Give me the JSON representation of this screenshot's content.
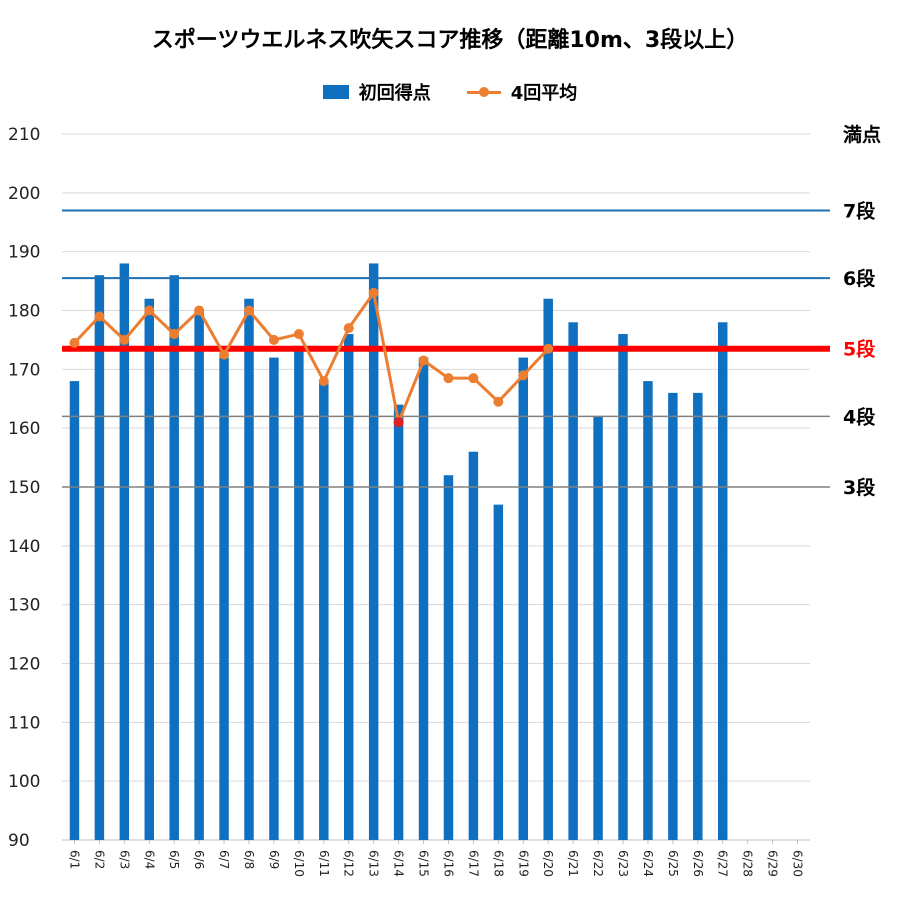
{
  "chart_data": {
    "type": "bar",
    "title": "スポーツウエルネス吹矢スコア推移（距離10m、3段以上）",
    "xlabel": "",
    "ylabel": "",
    "ylim": [
      90,
      210
    ],
    "yticks": [
      90,
      100,
      110,
      120,
      130,
      140,
      150,
      160,
      170,
      180,
      190,
      200,
      210
    ],
    "grid": true,
    "legend_position": "top-center",
    "categories": [
      "6/1",
      "6/2",
      "6/3",
      "6/4",
      "6/5",
      "6/6",
      "6/7",
      "6/8",
      "6/9",
      "6/10",
      "6/11",
      "6/12",
      "6/13",
      "6/14",
      "6/15",
      "6/16",
      "6/17",
      "6/18",
      "6/19",
      "6/20",
      "6/21",
      "6/22",
      "6/23",
      "6/24",
      "6/25",
      "6/26",
      "6/27",
      "6/28",
      "6/29",
      "6/30"
    ],
    "series": [
      {
        "name": "初回得点",
        "type": "bar",
        "color": "#1070C0",
        "values": [
          168,
          186,
          188,
          182,
          186,
          180,
          172,
          182,
          172,
          174,
          168,
          176,
          188,
          164,
          172,
          152,
          156,
          147,
          172,
          182,
          178,
          162,
          176,
          168,
          166,
          166,
          178,
          null,
          null,
          null
        ]
      },
      {
        "name": "4回平均",
        "type": "line",
        "color": "#ED7D31",
        "values": [
          174.5,
          179,
          175,
          180,
          176,
          180,
          172.5,
          180,
          175,
          176,
          168,
          177,
          183,
          161,
          171.5,
          168.5,
          168.5,
          164.5,
          169,
          173.5,
          null,
          null,
          null,
          null,
          null,
          null,
          null,
          null,
          null,
          null
        ],
        "highlight": {
          "index": 13,
          "color": "#E02020"
        }
      }
    ],
    "reference_lines": [
      {
        "label": "満点",
        "value": 210,
        "color": null,
        "width": 0
      },
      {
        "label": "7段",
        "value": 197,
        "color": "#1F6FB4",
        "width": 2,
        "label_color": "#000000"
      },
      {
        "label": "6段",
        "value": 185.5,
        "color": "#1F6FB4",
        "width": 2,
        "label_color": "#000000"
      },
      {
        "label": "5段",
        "value": 173.5,
        "color": "#FF0000",
        "width": 6,
        "label_color": "#FF0000"
      },
      {
        "label": "4段",
        "value": 162,
        "color": "#808080",
        "width": 1.5,
        "label_color": "#000000"
      },
      {
        "label": "3段",
        "value": 150,
        "color": "#808080",
        "width": 1.5,
        "label_color": "#000000"
      }
    ]
  }
}
